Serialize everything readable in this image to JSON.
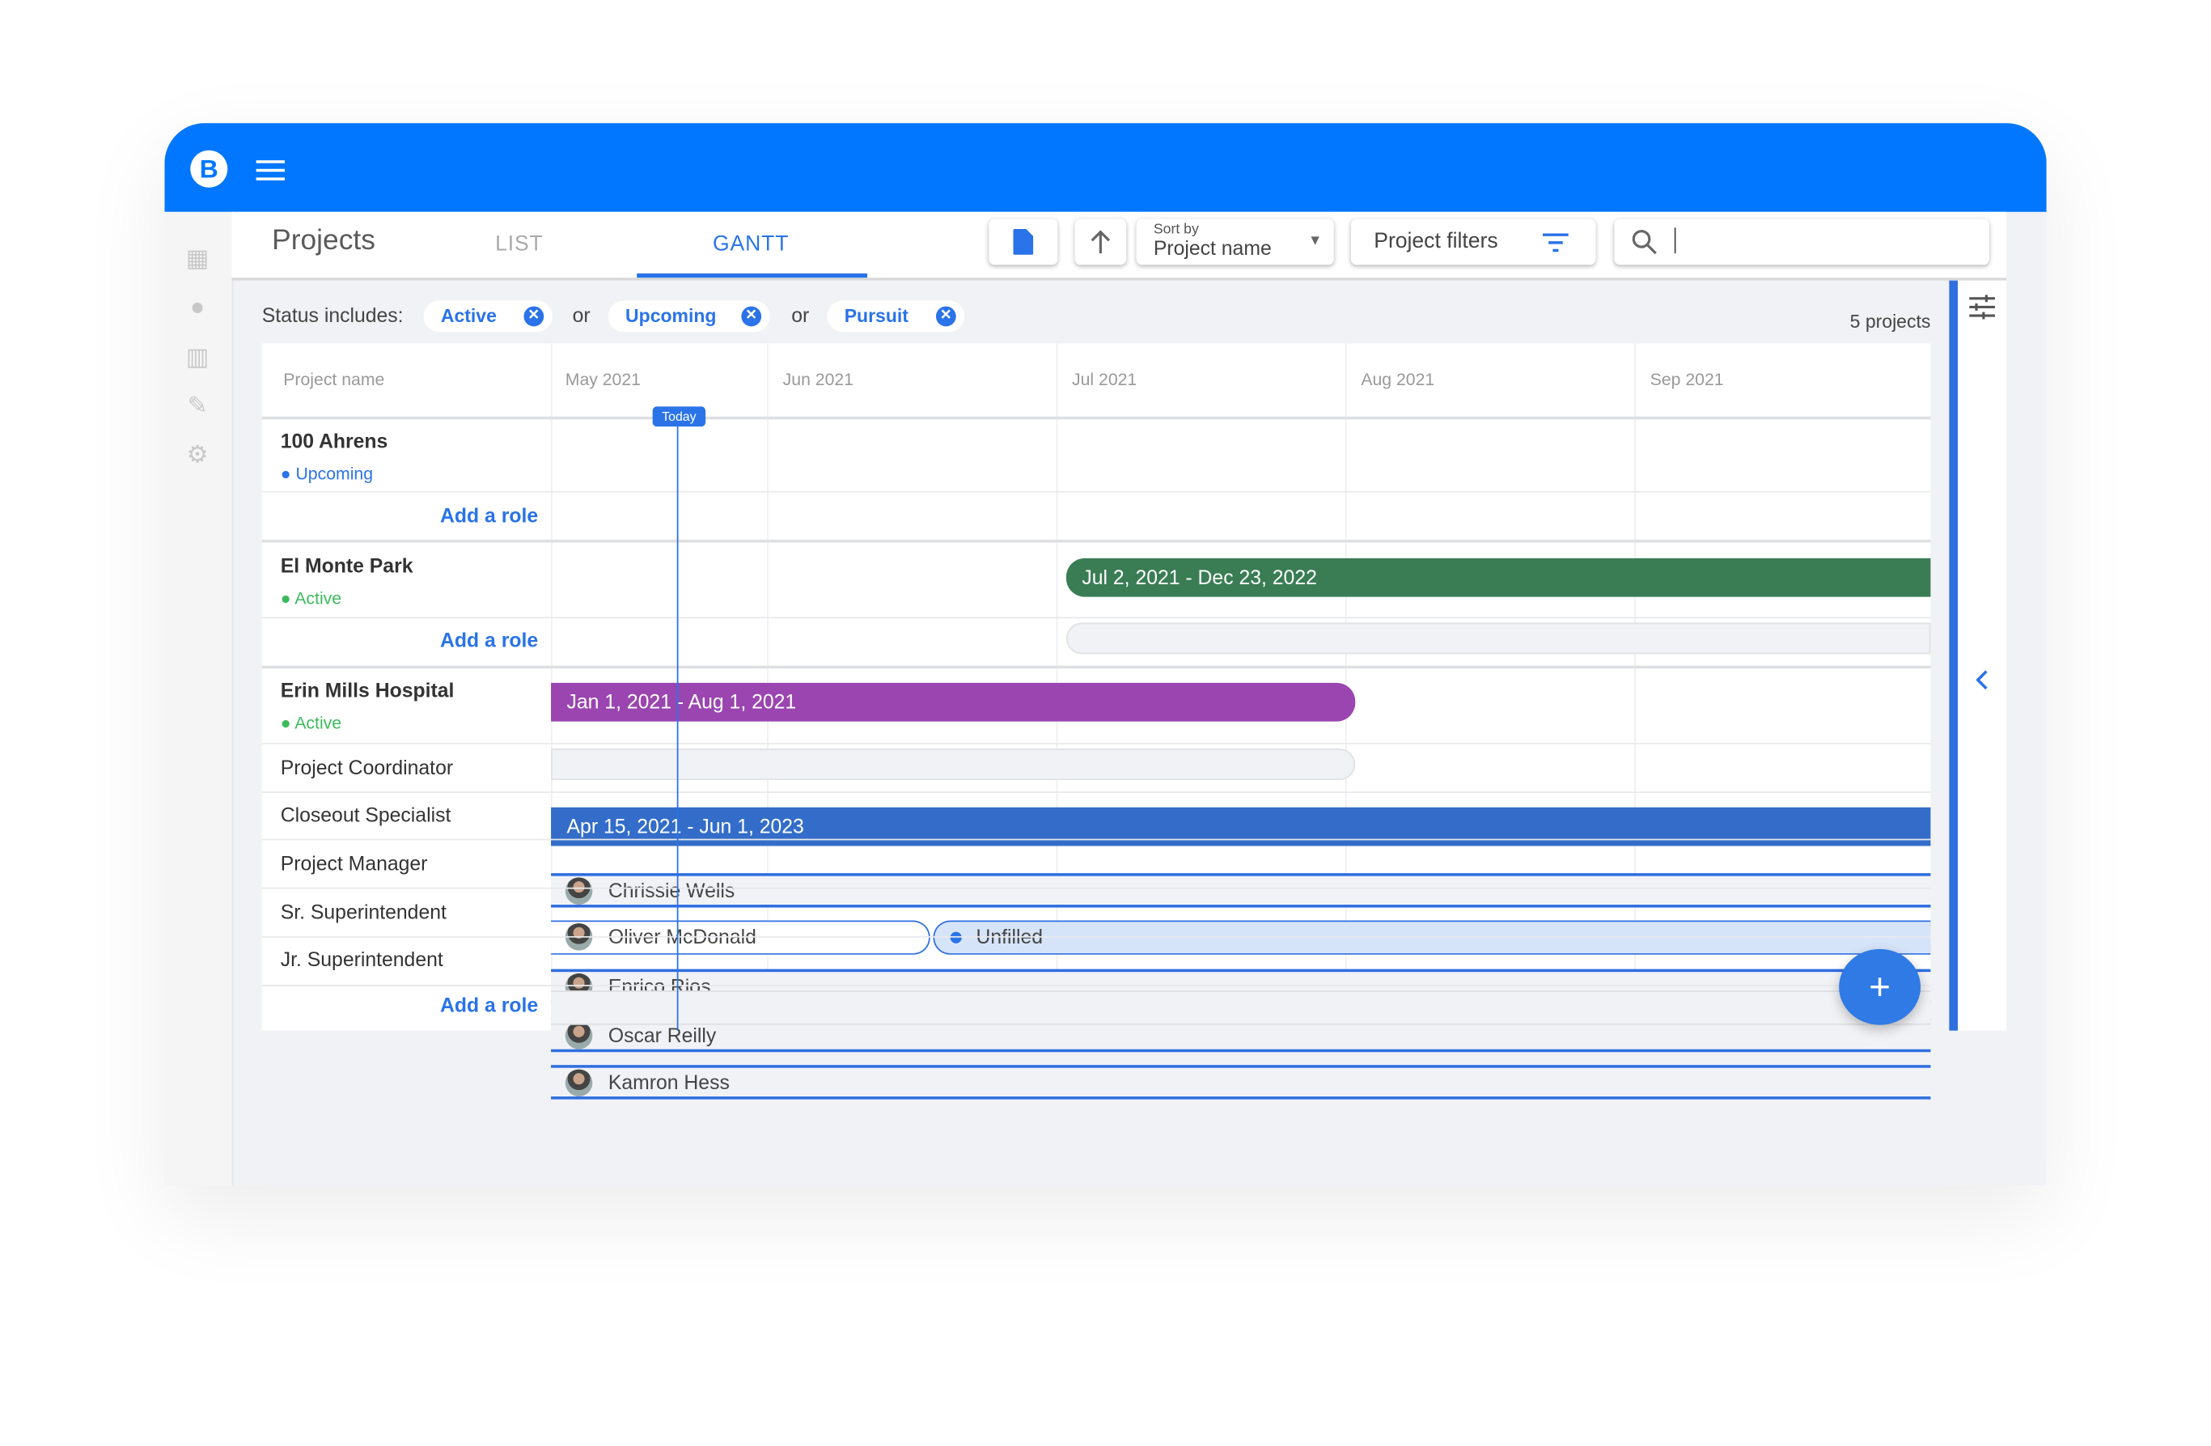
{
  "header": {
    "logo": "B",
    "menu_icon": "hamburger-icon",
    "brand_color": "#0077fe"
  },
  "sidebar": {
    "items": [
      {
        "icon": "dashboard-icon"
      },
      {
        "icon": "person-icon"
      },
      {
        "icon": "building-icon"
      },
      {
        "icon": "wrench-icon"
      },
      {
        "icon": "gear-icon"
      }
    ]
  },
  "toolbar": {
    "title": "Projects",
    "tabs": [
      {
        "label": "LIST",
        "active": false
      },
      {
        "label": "GANTT",
        "active": true
      }
    ],
    "sort_label": "Sort by",
    "sort_value": "Project name",
    "filters_label": "Project filters",
    "search_value": ""
  },
  "filters": {
    "label": "Status includes:",
    "or": "or",
    "chips": [
      "Active",
      "Upcoming",
      "Pursuit"
    ],
    "count": "5 projects"
  },
  "gantt": {
    "name_header": "Project name",
    "months": [
      "May 2021",
      "Jun 2021",
      "Jul 2021",
      "Aug 2021",
      "Sep 2021"
    ],
    "today_label": "Today",
    "add_role": "Add a role",
    "projects": [
      {
        "name": "100 Ahrens",
        "status": "Upcoming",
        "status_color": "#2a73e8",
        "range": "Jul 2, 2021 - Dec 23, 2022",
        "color": "#3a7d55"
      },
      {
        "name": "El Monte Park",
        "status": "Active",
        "status_color": "#3cba5c",
        "range": "Jan 1, 2021 - Aug 1, 2021",
        "color": "#9b45b0"
      },
      {
        "name": "Erin Mills Hospital",
        "status": "Active",
        "status_color": "#3cba5c",
        "range": "Apr 15, 2021 - Jun 1, 2023",
        "color": "#336dc9",
        "roles": [
          {
            "role": "Project Coordinator",
            "assignee": "Chrissie Wells"
          },
          {
            "role": "Closeout Specialist",
            "assignee": "Oliver McDonald",
            "unfilled": "Unfilled"
          },
          {
            "role": "Project Manager",
            "assignee": "Enrico Rios"
          },
          {
            "role": "Sr. Superintendent",
            "assignee": "Oscar Reilly"
          },
          {
            "role": "Jr. Superintendent",
            "assignee": "Kamron Hess"
          }
        ]
      }
    ]
  },
  "fab": "+"
}
